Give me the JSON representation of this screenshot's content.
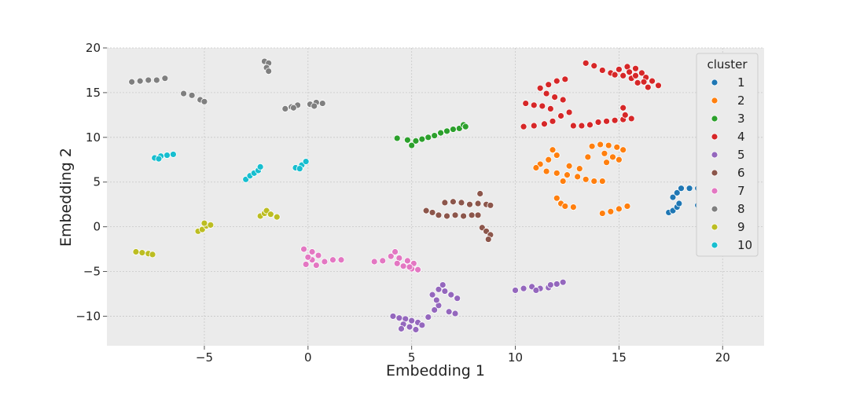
{
  "chart_data": {
    "type": "scatter",
    "title": "",
    "xlabel": "Embedding 1",
    "ylabel": "Embedding 2",
    "xlim": [
      -9.7,
      22.0
    ],
    "ylim": [
      -13.3,
      20.0
    ],
    "xticks": [
      -5,
      0,
      5,
      10,
      15,
      20
    ],
    "yticks": [
      -10,
      -5,
      0,
      5,
      10,
      15,
      20
    ],
    "grid": true,
    "legend": {
      "title": "cluster",
      "placement": "top-right"
    },
    "series": [
      {
        "name": "1",
        "color": "#1f77b4",
        "points": [
          [
            17.4,
            1.6
          ],
          [
            17.6,
            1.8
          ],
          [
            17.8,
            2.2
          ],
          [
            17.9,
            2.6
          ],
          [
            17.6,
            3.3
          ],
          [
            17.8,
            3.8
          ],
          [
            18.0,
            4.3
          ],
          [
            18.4,
            4.3
          ],
          [
            18.8,
            4.3
          ],
          [
            19.2,
            4.3
          ],
          [
            19.6,
            4.4
          ],
          [
            18.8,
            2.4
          ],
          [
            19.2,
            2.2
          ],
          [
            19.6,
            2.0
          ],
          [
            20.0,
            1.8
          ],
          [
            20.3,
            1.6
          ],
          [
            20.0,
            4.6
          ],
          [
            20.5,
            5.0
          ]
        ]
      },
      {
        "name": "2",
        "color": "#ff7f0e",
        "points": [
          [
            11.8,
            8.6
          ],
          [
            12.0,
            8.0
          ],
          [
            11.6,
            7.5
          ],
          [
            11.2,
            7.0
          ],
          [
            11.0,
            6.6
          ],
          [
            11.5,
            6.2
          ],
          [
            12.0,
            6.0
          ],
          [
            12.5,
            5.8
          ],
          [
            13.0,
            5.6
          ],
          [
            13.4,
            5.3
          ],
          [
            13.8,
            5.1
          ],
          [
            14.2,
            5.1
          ],
          [
            12.6,
            6.8
          ],
          [
            13.1,
            6.5
          ],
          [
            12.3,
            5.1
          ],
          [
            12.0,
            3.2
          ],
          [
            12.2,
            2.6
          ],
          [
            12.4,
            2.3
          ],
          [
            12.8,
            2.2
          ],
          [
            14.2,
            1.5
          ],
          [
            14.6,
            1.7
          ],
          [
            15.0,
            2.0
          ],
          [
            15.4,
            2.3
          ],
          [
            13.7,
            9.0
          ],
          [
            14.1,
            9.2
          ],
          [
            14.5,
            9.1
          ],
          [
            14.9,
            8.9
          ],
          [
            15.2,
            8.6
          ],
          [
            14.3,
            8.2
          ],
          [
            14.7,
            7.8
          ],
          [
            15.0,
            7.5
          ],
          [
            14.4,
            7.2
          ],
          [
            13.5,
            7.8
          ]
        ]
      },
      {
        "name": "3",
        "color": "#2ca02c",
        "points": [
          [
            4.3,
            9.9
          ],
          [
            4.8,
            9.7
          ],
          [
            5.2,
            9.6
          ],
          [
            5.0,
            9.1
          ],
          [
            5.5,
            9.8
          ],
          [
            5.8,
            10.0
          ],
          [
            6.1,
            10.2
          ],
          [
            6.4,
            10.5
          ],
          [
            6.7,
            10.7
          ],
          [
            7.0,
            10.9
          ],
          [
            7.3,
            11.0
          ],
          [
            7.5,
            11.4
          ],
          [
            7.6,
            11.2
          ]
        ]
      },
      {
        "name": "4",
        "color": "#d62728",
        "points": [
          [
            10.4,
            11.2
          ],
          [
            10.5,
            13.8
          ],
          [
            10.9,
            13.6
          ],
          [
            11.3,
            13.5
          ],
          [
            11.7,
            13.2
          ],
          [
            10.9,
            11.3
          ],
          [
            11.4,
            11.5
          ],
          [
            11.8,
            11.8
          ],
          [
            12.2,
            12.4
          ],
          [
            12.6,
            12.8
          ],
          [
            11.2,
            15.5
          ],
          [
            11.6,
            15.9
          ],
          [
            12.0,
            16.3
          ],
          [
            12.4,
            16.5
          ],
          [
            11.5,
            14.9
          ],
          [
            11.9,
            14.5
          ],
          [
            12.3,
            14.2
          ],
          [
            12.8,
            11.3
          ],
          [
            13.2,
            11.3
          ],
          [
            13.6,
            11.4
          ],
          [
            14.0,
            11.7
          ],
          [
            14.4,
            11.8
          ],
          [
            14.8,
            11.9
          ],
          [
            15.2,
            12.0
          ],
          [
            15.6,
            12.1
          ],
          [
            15.3,
            12.5
          ],
          [
            15.2,
            13.3
          ],
          [
            13.4,
            18.3
          ],
          [
            13.8,
            18.0
          ],
          [
            14.2,
            17.5
          ],
          [
            14.6,
            17.2
          ],
          [
            15.0,
            17.6
          ],
          [
            15.4,
            17.9
          ],
          [
            15.8,
            17.7
          ],
          [
            16.1,
            17.2
          ],
          [
            16.3,
            16.7
          ],
          [
            16.6,
            16.3
          ],
          [
            16.9,
            15.8
          ],
          [
            16.4,
            15.6
          ],
          [
            15.9,
            16.1
          ],
          [
            15.6,
            16.6
          ],
          [
            15.2,
            16.9
          ],
          [
            15.5,
            17.3
          ],
          [
            15.8,
            16.9
          ],
          [
            16.2,
            16.2
          ],
          [
            14.8,
            17.0
          ]
        ]
      },
      {
        "name": "5",
        "color": "#9467bd",
        "points": [
          [
            4.1,
            -10.0
          ],
          [
            4.4,
            -10.2
          ],
          [
            4.7,
            -10.3
          ],
          [
            5.0,
            -10.5
          ],
          [
            5.3,
            -10.7
          ],
          [
            5.5,
            -11.0
          ],
          [
            4.6,
            -10.9
          ],
          [
            4.9,
            -11.2
          ],
          [
            5.2,
            -11.5
          ],
          [
            4.5,
            -11.4
          ],
          [
            5.8,
            -10.1
          ],
          [
            6.1,
            -9.3
          ],
          [
            6.3,
            -8.8
          ],
          [
            6.2,
            -8.2
          ],
          [
            6.0,
            -7.6
          ],
          [
            6.3,
            -7.0
          ],
          [
            6.6,
            -7.2
          ],
          [
            6.9,
            -7.6
          ],
          [
            7.2,
            -8.0
          ],
          [
            6.5,
            -6.5
          ],
          [
            6.8,
            -9.5
          ],
          [
            7.1,
            -9.7
          ],
          [
            10.0,
            -7.1
          ],
          [
            10.4,
            -6.9
          ],
          [
            10.8,
            -6.7
          ],
          [
            11.2,
            -6.9
          ],
          [
            11.6,
            -6.8
          ],
          [
            12.0,
            -6.4
          ],
          [
            12.3,
            -6.2
          ],
          [
            11.0,
            -7.1
          ],
          [
            11.7,
            -6.5
          ]
        ]
      },
      {
        "name": "6",
        "color": "#8c564b",
        "points": [
          [
            5.7,
            1.8
          ],
          [
            6.0,
            1.6
          ],
          [
            6.3,
            1.3
          ],
          [
            6.7,
            1.2
          ],
          [
            7.1,
            1.3
          ],
          [
            7.5,
            1.2
          ],
          [
            7.9,
            1.3
          ],
          [
            8.2,
            1.3
          ],
          [
            6.6,
            2.7
          ],
          [
            7.0,
            2.8
          ],
          [
            7.4,
            2.7
          ],
          [
            7.8,
            2.5
          ],
          [
            8.2,
            2.6
          ],
          [
            8.6,
            2.5
          ],
          [
            8.8,
            2.4
          ],
          [
            8.3,
            3.7
          ],
          [
            8.4,
            -0.1
          ],
          [
            8.6,
            -0.5
          ],
          [
            8.8,
            -0.9
          ],
          [
            8.7,
            -1.4
          ]
        ]
      },
      {
        "name": "7",
        "color": "#e377c2",
        "points": [
          [
            -0.2,
            -2.5
          ],
          [
            0.2,
            -2.8
          ],
          [
            0.5,
            -3.2
          ],
          [
            0.2,
            -3.7
          ],
          [
            -0.1,
            -4.2
          ],
          [
            0.4,
            -4.3
          ],
          [
            0.8,
            -3.9
          ],
          [
            1.2,
            -3.7
          ],
          [
            1.6,
            -3.7
          ],
          [
            0.0,
            -3.4
          ],
          [
            3.2,
            -3.9
          ],
          [
            3.6,
            -3.8
          ],
          [
            4.0,
            -3.3
          ],
          [
            4.2,
            -2.8
          ],
          [
            4.4,
            -3.5
          ],
          [
            4.8,
            -3.8
          ],
          [
            5.1,
            -4.1
          ],
          [
            4.6,
            -4.4
          ],
          [
            5.0,
            -4.7
          ],
          [
            5.3,
            -4.8
          ],
          [
            4.9,
            -4.5
          ],
          [
            4.3,
            -4.1
          ]
        ]
      },
      {
        "name": "8",
        "color": "#7f7f7f",
        "points": [
          [
            -8.5,
            16.2
          ],
          [
            -8.1,
            16.3
          ],
          [
            -7.7,
            16.4
          ],
          [
            -7.3,
            16.4
          ],
          [
            -6.9,
            16.6
          ],
          [
            -6.0,
            14.9
          ],
          [
            -5.6,
            14.7
          ],
          [
            -5.2,
            14.2
          ],
          [
            -5.0,
            14.0
          ],
          [
            -2.1,
            18.5
          ],
          [
            -1.9,
            18.3
          ],
          [
            -2.0,
            17.8
          ],
          [
            -1.9,
            17.4
          ],
          [
            -1.1,
            13.2
          ],
          [
            -0.8,
            13.4
          ],
          [
            -0.5,
            13.6
          ],
          [
            -0.7,
            13.3
          ],
          [
            0.1,
            13.7
          ],
          [
            0.4,
            13.9
          ],
          [
            0.7,
            13.8
          ],
          [
            0.3,
            13.5
          ]
        ]
      },
      {
        "name": "9",
        "color": "#bcbd22",
        "points": [
          [
            -8.3,
            -2.8
          ],
          [
            -8.0,
            -2.9
          ],
          [
            -7.7,
            -3.0
          ],
          [
            -7.5,
            -3.1
          ],
          [
            -5.3,
            -0.5
          ],
          [
            -5.1,
            -0.3
          ],
          [
            -4.9,
            0.1
          ],
          [
            -4.7,
            0.2
          ],
          [
            -5.0,
            0.4
          ],
          [
            -2.3,
            1.2
          ],
          [
            -2.1,
            1.5
          ],
          [
            -2.0,
            1.8
          ],
          [
            -1.8,
            1.4
          ],
          [
            -1.5,
            1.1
          ]
        ]
      },
      {
        "name": "10",
        "color": "#17becf",
        "points": [
          [
            -7.4,
            7.7
          ],
          [
            -7.1,
            7.9
          ],
          [
            -6.8,
            8.0
          ],
          [
            -6.5,
            8.1
          ],
          [
            -7.2,
            7.6
          ],
          [
            -3.0,
            5.3
          ],
          [
            -2.8,
            5.7
          ],
          [
            -2.6,
            6.0
          ],
          [
            -2.4,
            6.3
          ],
          [
            -2.3,
            6.7
          ],
          [
            -0.6,
            6.6
          ],
          [
            -0.3,
            6.9
          ],
          [
            -0.1,
            7.3
          ],
          [
            -0.4,
            6.5
          ]
        ]
      }
    ]
  }
}
